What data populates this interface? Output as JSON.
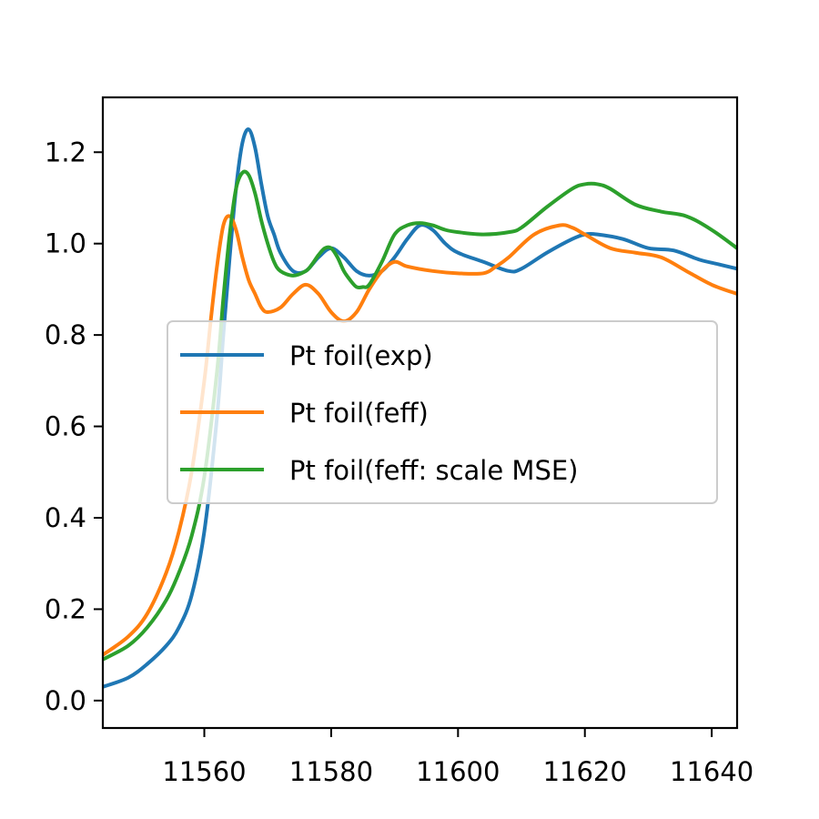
{
  "chart_data": {
    "type": "line",
    "title": "",
    "xlabel": "",
    "ylabel": "",
    "xlim": [
      11544,
      11644
    ],
    "ylim": [
      -0.06,
      1.32
    ],
    "xticks": [
      11560,
      11580,
      11600,
      11620,
      11640
    ],
    "yticks": [
      0.0,
      0.2,
      0.4,
      0.6,
      0.8,
      1.0,
      1.2
    ],
    "xtick_labels": [
      "11560",
      "11580",
      "11600",
      "11620",
      "11640"
    ],
    "ytick_labels": [
      "0.0",
      "0.2",
      "0.4",
      "0.6",
      "0.8",
      "1.0",
      "1.2"
    ],
    "grid": false,
    "legend_position": "center",
    "series": [
      {
        "name": "Pt foil(exp)",
        "color": "#1f77b4",
        "x": [
          11544,
          11548,
          11551,
          11554,
          11556,
          11558,
          11560,
          11562,
          11563,
          11564,
          11565,
          11566,
          11567,
          11568,
          11569,
          11570,
          11571,
          11572,
          11574,
          11576,
          11578,
          11580,
          11582,
          11584,
          11586,
          11588,
          11590,
          11592,
          11594,
          11596,
          11598,
          11600,
          11604,
          11608,
          11610,
          11614,
          11618,
          11620,
          11622,
          11626,
          11630,
          11634,
          11638,
          11641,
          11644
        ],
        "y": [
          0.03,
          0.05,
          0.08,
          0.12,
          0.16,
          0.23,
          0.37,
          0.62,
          0.8,
          0.97,
          1.12,
          1.22,
          1.25,
          1.21,
          1.13,
          1.06,
          1.02,
          0.98,
          0.94,
          0.94,
          0.97,
          0.99,
          0.97,
          0.94,
          0.93,
          0.94,
          0.97,
          1.01,
          1.04,
          1.03,
          1.0,
          0.98,
          0.96,
          0.94,
          0.945,
          0.98,
          1.01,
          1.02,
          1.02,
          1.01,
          0.99,
          0.985,
          0.965,
          0.955,
          0.945
        ]
      },
      {
        "name": "Pt foil(feff)",
        "color": "#ff7f0e",
        "x": [
          11544,
          11548,
          11551,
          11554,
          11556,
          11558,
          11560,
          11561,
          11562,
          11563,
          11564,
          11565,
          11566,
          11567,
          11568,
          11569,
          11570,
          11572,
          11574,
          11576,
          11578,
          11580,
          11582,
          11584,
          11586,
          11588,
          11590,
          11592,
          11596,
          11600,
          11604,
          11606,
          11608,
          11612,
          11616,
          11618,
          11620,
          11624,
          11628,
          11632,
          11636,
          11640,
          11644
        ],
        "y": [
          0.1,
          0.14,
          0.19,
          0.28,
          0.37,
          0.5,
          0.7,
          0.83,
          0.95,
          1.04,
          1.06,
          1.03,
          0.97,
          0.92,
          0.89,
          0.86,
          0.85,
          0.86,
          0.89,
          0.91,
          0.89,
          0.85,
          0.83,
          0.85,
          0.9,
          0.94,
          0.96,
          0.95,
          0.94,
          0.935,
          0.935,
          0.95,
          0.97,
          1.02,
          1.04,
          1.035,
          1.02,
          0.99,
          0.98,
          0.97,
          0.94,
          0.91,
          0.89
        ]
      },
      {
        "name": "Pt foil(feff: scale MSE)",
        "color": "#2ca02c",
        "x": [
          11544,
          11548,
          11551,
          11554,
          11556,
          11558,
          11560,
          11562,
          11563,
          11564,
          11565,
          11566,
          11567,
          11568,
          11569,
          11570,
          11571,
          11572,
          11574,
          11576,
          11577,
          11578,
          11579,
          11580,
          11581,
          11582,
          11583,
          11584,
          11585,
          11586,
          11588,
          11590,
          11592,
          11594,
          11596,
          11598,
          11600,
          11604,
          11608,
          11610,
          11614,
          11618,
          11620,
          11622,
          11624,
          11628,
          11632,
          11636,
          11640,
          11644
        ],
        "y": [
          0.09,
          0.12,
          0.16,
          0.22,
          0.28,
          0.36,
          0.49,
          0.72,
          0.88,
          1.02,
          1.12,
          1.155,
          1.15,
          1.11,
          1.05,
          1.0,
          0.96,
          0.94,
          0.93,
          0.94,
          0.955,
          0.975,
          0.99,
          0.99,
          0.97,
          0.94,
          0.92,
          0.905,
          0.905,
          0.91,
          0.96,
          1.02,
          1.04,
          1.045,
          1.04,
          1.03,
          1.025,
          1.02,
          1.025,
          1.035,
          1.08,
          1.12,
          1.13,
          1.13,
          1.12,
          1.085,
          1.07,
          1.06,
          1.03,
          0.99
        ]
      }
    ]
  }
}
